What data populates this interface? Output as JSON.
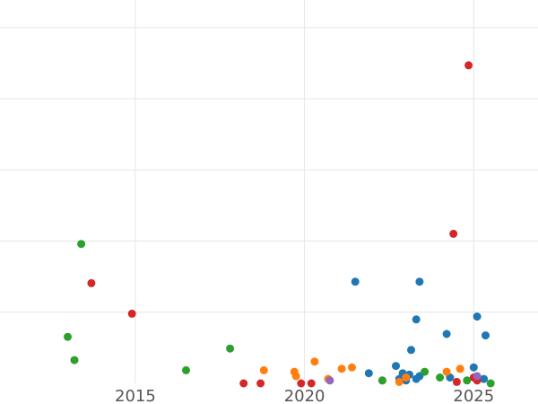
{
  "chart_data": {
    "type": "scatter",
    "title": "",
    "xlabel": "",
    "ylabel": "",
    "xlim": [
      2011,
      2026.9
    ],
    "ylim": [
      0,
      5.28
    ],
    "x_ticks": [
      2015,
      2020,
      2025
    ],
    "y_gridlines": [
      0.98,
      1.96,
      2.94,
      3.92,
      4.9
    ],
    "grid": true,
    "legend": "none",
    "series": [
      {
        "color": "#1f77b4",
        "points": [
          [
            2021.5,
            1.4
          ],
          [
            2021.9,
            0.14
          ],
          [
            2022.7,
            0.24
          ],
          [
            2022.8,
            0.06
          ],
          [
            2022.9,
            0.14
          ],
          [
            2023.0,
            0.04
          ],
          [
            2023.1,
            0.12
          ],
          [
            2023.15,
            0.46
          ],
          [
            2023.3,
            0.06
          ],
          [
            2023.3,
            0.88
          ],
          [
            2023.4,
            0.1
          ],
          [
            2023.4,
            1.4
          ],
          [
            2024.2,
            0.68
          ],
          [
            2024.3,
            0.08
          ],
          [
            2025.0,
            0.22
          ],
          [
            2025.1,
            0.92
          ],
          [
            2025.3,
            0.06
          ],
          [
            2025.35,
            0.66
          ]
        ]
      },
      {
        "color": "#ff7f0e",
        "points": [
          [
            2018.8,
            0.18
          ],
          [
            2019.7,
            0.16
          ],
          [
            2019.75,
            0.1
          ],
          [
            2020.3,
            0.3
          ],
          [
            2020.7,
            0.06
          ],
          [
            2021.1,
            0.2
          ],
          [
            2021.4,
            0.22
          ],
          [
            2022.3,
            0.04
          ],
          [
            2022.8,
            0.02
          ],
          [
            2023.0,
            0.08
          ],
          [
            2024.2,
            0.16
          ],
          [
            2024.6,
            0.2
          ]
        ]
      },
      {
        "color": "#2ca02c",
        "points": [
          [
            2013.0,
            0.64
          ],
          [
            2013.2,
            0.32
          ],
          [
            2013.4,
            1.92
          ],
          [
            2016.5,
            0.18
          ],
          [
            2017.8,
            0.48
          ],
          [
            2022.3,
            0.04
          ],
          [
            2023.55,
            0.16
          ],
          [
            2024.0,
            0.08
          ],
          [
            2024.8,
            0.04
          ],
          [
            2025.5,
            0.0
          ]
        ]
      },
      {
        "color": "#d62728",
        "points": [
          [
            2013.7,
            1.38
          ],
          [
            2014.9,
            0.96
          ],
          [
            2018.2,
            0.0
          ],
          [
            2018.7,
            0.0
          ],
          [
            2019.9,
            0.0
          ],
          [
            2020.2,
            0.0
          ],
          [
            2024.4,
            2.06
          ],
          [
            2024.5,
            0.02
          ],
          [
            2024.85,
            4.38
          ],
          [
            2025.0,
            0.08
          ],
          [
            2025.1,
            0.04
          ]
        ]
      },
      {
        "color": "#9467bd",
        "points": [
          [
            2020.75,
            0.04
          ],
          [
            2025.1,
            0.1
          ]
        ]
      }
    ]
  }
}
